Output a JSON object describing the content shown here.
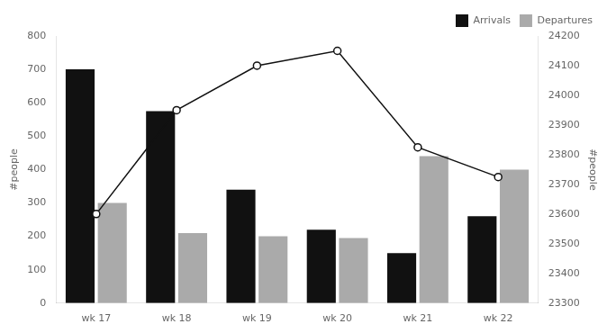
{
  "chart_data": {
    "type": "bar",
    "categories": [
      "wk 17",
      "wk 18",
      "wk 19",
      "wk 20",
      "wk 21",
      "wk 22"
    ],
    "series": [
      {
        "name": "Arrivals",
        "color": "#111111",
        "values": [
          700,
          575,
          340,
          220,
          150,
          260
        ]
      },
      {
        "name": "Departures",
        "color": "#aaaaaa",
        "values": [
          300,
          210,
          200,
          195,
          440,
          400
        ]
      },
      {
        "type": "line",
        "axis": "y2",
        "color": "#111111",
        "marker": "circle",
        "values": [
          23600,
          23950,
          24100,
          24150,
          23825,
          23725
        ]
      }
    ],
    "ylabel": "#people",
    "y2label": "#people",
    "ylim": [
      0,
      800
    ],
    "yticks": [
      0,
      100,
      200,
      300,
      400,
      500,
      600,
      700,
      800
    ],
    "y2lim": [
      23300,
      24200
    ],
    "y2ticks": [
      23300,
      23400,
      23500,
      23600,
      23700,
      23800,
      23900,
      24000,
      24100,
      24200
    ],
    "grid": false,
    "legend": "upper right"
  }
}
